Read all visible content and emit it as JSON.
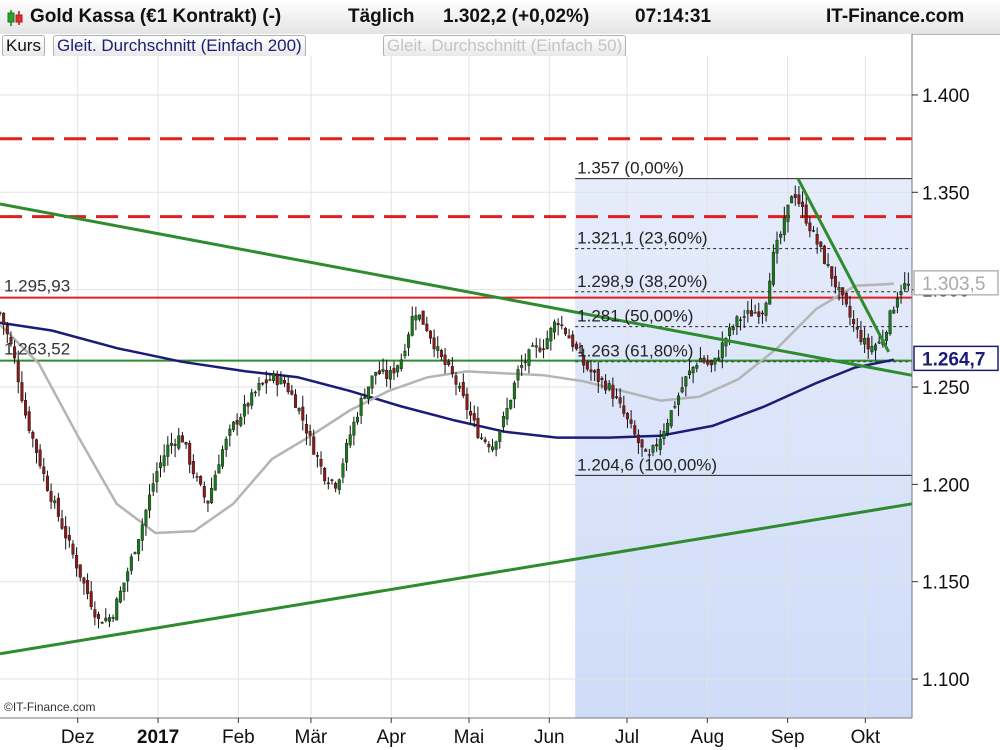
{
  "header": {
    "instrument": "Gold Kassa (€1 Kontrakt) (-)",
    "interval": "Täglich",
    "price": "1.302,2 (+0,02%)",
    "time": "07:14:31",
    "brand": "IT-Finance.com"
  },
  "icons": [
    "candlestick-icon"
  ],
  "legend": {
    "kurs": "Kurs",
    "ma200": "Gleit. Durchschnitt (Einfach 200)",
    "ma50": "Gleit. Durchschnitt (Einfach 50)"
  },
  "copyright": "©IT-Finance.com",
  "colors": {
    "ma200": "#1c1c78",
    "ma50": "#b4b4b4",
    "green_line": "#2e8b2e",
    "red_line": "#e02020",
    "candle_up": "#1a7a1a",
    "candle_down": "#8b1a1a",
    "fib_fill": "#dde6fb"
  },
  "chart_data": {
    "type": "candlestick",
    "title": "Gold Kassa (€1 Kontrakt) (-)",
    "ylim": [
      1.08,
      1.42
    ],
    "y_ticks": [
      1.1,
      1.15,
      1.2,
      1.25,
      1.3,
      1.35,
      1.4
    ],
    "y_tick_labels": [
      "1.100",
      "1.150",
      "1.200",
      "1.250",
      "1.300",
      "1.350",
      "1.400"
    ],
    "x_tick_labels": [
      "Dez",
      "2017",
      "Feb",
      "Mär",
      "Apr",
      "Mai",
      "Jun",
      "Jul",
      "Aug",
      "Sep",
      "Okt"
    ],
    "x_tick_days": [
      30,
      61,
      92,
      120,
      151,
      181,
      212,
      242,
      273,
      304,
      334
    ],
    "x_range_days": [
      0,
      352
    ],
    "grid": true,
    "close_series": [
      [
        0,
        1.288
      ],
      [
        5,
        1.268
      ],
      [
        10,
        1.235
      ],
      [
        18,
        1.2
      ],
      [
        25,
        1.175
      ],
      [
        32,
        1.15
      ],
      [
        38,
        1.13
      ],
      [
        43,
        1.132
      ],
      [
        48,
        1.15
      ],
      [
        55,
        1.18
      ],
      [
        60,
        1.205
      ],
      [
        65,
        1.22
      ],
      [
        70,
        1.225
      ],
      [
        75,
        1.205
      ],
      [
        80,
        1.19
      ],
      [
        85,
        1.215
      ],
      [
        90,
        1.23
      ],
      [
        95,
        1.24
      ],
      [
        100,
        1.25
      ],
      [
        105,
        1.255
      ],
      [
        110,
        1.252
      ],
      [
        115,
        1.24
      ],
      [
        120,
        1.222
      ],
      [
        125,
        1.205
      ],
      [
        130,
        1.2
      ],
      [
        135,
        1.225
      ],
      [
        140,
        1.245
      ],
      [
        145,
        1.258
      ],
      [
        150,
        1.255
      ],
      [
        155,
        1.265
      ],
      [
        160,
        1.29
      ],
      [
        165,
        1.28
      ],
      [
        170,
        1.265
      ],
      [
        175,
        1.255
      ],
      [
        180,
        1.24
      ],
      [
        185,
        1.225
      ],
      [
        190,
        1.22
      ],
      [
        195,
        1.235
      ],
      [
        200,
        1.258
      ],
      [
        205,
        1.268
      ],
      [
        210,
        1.272
      ],
      [
        215,
        1.285
      ],
      [
        220,
        1.275
      ],
      [
        225,
        1.262
      ],
      [
        230,
        1.255
      ],
      [
        235,
        1.25
      ],
      [
        240,
        1.238
      ],
      [
        245,
        1.225
      ],
      [
        250,
        1.212
      ],
      [
        255,
        1.225
      ],
      [
        260,
        1.24
      ],
      [
        265,
        1.255
      ],
      [
        270,
        1.265
      ],
      [
        275,
        1.26
      ],
      [
        280,
        1.275
      ],
      [
        285,
        1.285
      ],
      [
        290,
        1.288
      ],
      [
        295,
        1.29
      ],
      [
        298,
        1.315
      ],
      [
        303,
        1.335
      ],
      [
        306,
        1.352
      ],
      [
        310,
        1.34
      ],
      [
        315,
        1.325
      ],
      [
        320,
        1.31
      ],
      [
        325,
        1.295
      ],
      [
        330,
        1.28
      ],
      [
        335,
        1.27
      ],
      [
        340,
        1.273
      ],
      [
        344,
        1.288
      ],
      [
        347,
        1.3
      ],
      [
        349,
        1.302
      ]
    ],
    "series": [
      {
        "name": "Gleit. Durchschnitt (Einfach 200)",
        "points": [
          [
            0,
            1.283
          ],
          [
            20,
            1.279
          ],
          [
            45,
            1.27
          ],
          [
            70,
            1.263
          ],
          [
            95,
            1.258
          ],
          [
            115,
            1.255
          ],
          [
            135,
            1.248
          ],
          [
            155,
            1.24
          ],
          [
            175,
            1.233
          ],
          [
            195,
            1.227
          ],
          [
            215,
            1.224
          ],
          [
            235,
            1.224
          ],
          [
            255,
            1.225
          ],
          [
            275,
            1.23
          ],
          [
            295,
            1.24
          ],
          [
            315,
            1.252
          ],
          [
            330,
            1.26
          ],
          [
            345,
            1.264
          ]
        ]
      },
      {
        "name": "Gleit. Durchschnitt (Einfach 50)",
        "points": [
          [
            0,
            1.282
          ],
          [
            15,
            1.262
          ],
          [
            30,
            1.225
          ],
          [
            45,
            1.19
          ],
          [
            60,
            1.175
          ],
          [
            75,
            1.176
          ],
          [
            90,
            1.19
          ],
          [
            105,
            1.213
          ],
          [
            120,
            1.225
          ],
          [
            135,
            1.238
          ],
          [
            150,
            1.248
          ],
          [
            165,
            1.255
          ],
          [
            180,
            1.258
          ],
          [
            195,
            1.257
          ],
          [
            210,
            1.256
          ],
          [
            225,
            1.253
          ],
          [
            240,
            1.248
          ],
          [
            255,
            1.243
          ],
          [
            270,
            1.245
          ],
          [
            285,
            1.254
          ],
          [
            300,
            1.27
          ],
          [
            315,
            1.29
          ],
          [
            330,
            1.302
          ],
          [
            345,
            1.303
          ]
        ]
      }
    ],
    "horizontal_lines": [
      {
        "y": 1.3775,
        "style": "dashed",
        "color": "#e02020"
      },
      {
        "y": 1.3375,
        "style": "dashed",
        "color": "#e02020"
      },
      {
        "y": 1.29593,
        "style": "solid",
        "color": "#e02020",
        "label": "1.295,93"
      },
      {
        "y": 1.26352,
        "style": "solid",
        "color": "#2e8b2e",
        "label": "1.263,52"
      }
    ],
    "trendlines": [
      {
        "from": [
          0,
          1.344
        ],
        "to": [
          352,
          1.256
        ]
      },
      {
        "from": [
          0,
          1.113
        ],
        "to": [
          352,
          1.19
        ]
      },
      {
        "from": [
          308,
          1.357
        ],
        "to": [
          343,
          1.268
        ]
      }
    ],
    "fibonacci": {
      "start_day": 222,
      "levels": [
        {
          "y": 1.357,
          "label": "1.357 (0,00%)",
          "style": "solid"
        },
        {
          "y": 1.3211,
          "label": "1.321,1 (23,60%)",
          "style": "dotted"
        },
        {
          "y": 1.2989,
          "label": "1.298,9 (38,20%)",
          "style": "dotted"
        },
        {
          "y": 1.281,
          "label": "1.281 (50,00%)",
          "style": "dotted"
        },
        {
          "y": 1.263,
          "label": "1.263 (61,80%)",
          "style": "dotted"
        },
        {
          "y": 1.2046,
          "label": "1.204,6 (100,00%)",
          "style": "solid"
        }
      ]
    },
    "price_tags": [
      {
        "y": 1.3035,
        "label": "1.303,5",
        "series": "Gleit. Durchschnitt (Einfach 50)"
      },
      {
        "y": 1.2647,
        "label": "1.264,7",
        "series": "Gleit. Durchschnitt (Einfach 200)"
      }
    ]
  }
}
